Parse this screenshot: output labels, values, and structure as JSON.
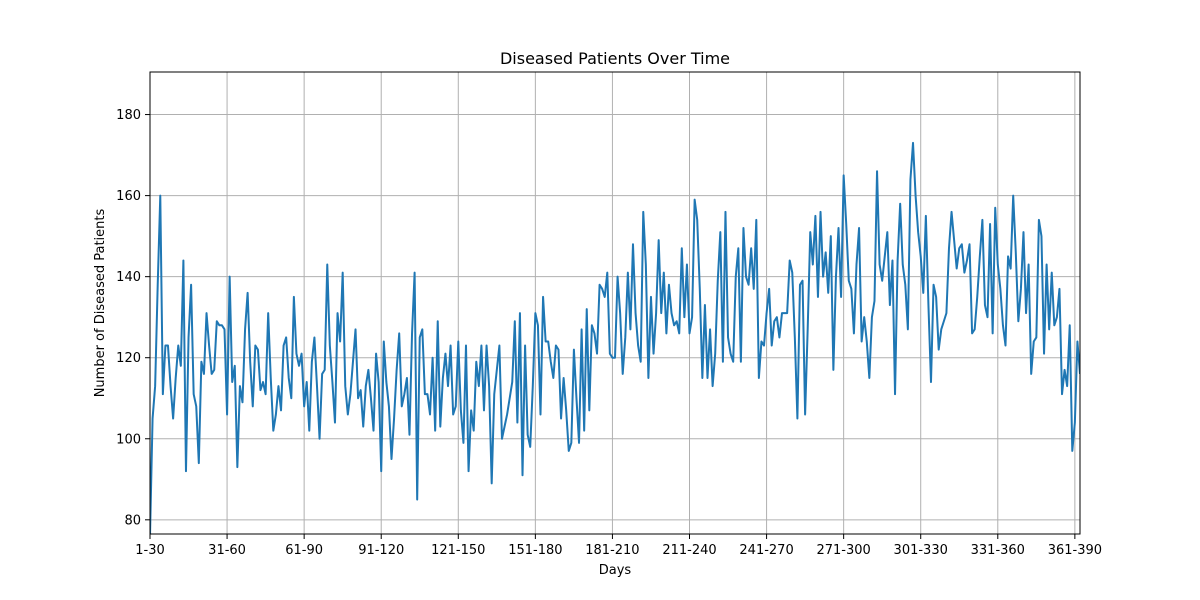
{
  "chart_data": {
    "type": "line",
    "title": "Diseased Patients Over Time",
    "xlabel": "Days",
    "ylabel": "Number of Diseased Patients",
    "ylim": [
      76.5,
      190.5
    ],
    "yticks": [
      80,
      100,
      120,
      140,
      160,
      180
    ],
    "xticks": [
      "1-30",
      "31-60",
      "61-90",
      "91-120",
      "121-150",
      "151-180",
      "181-210",
      "211-240",
      "241-270",
      "271-300",
      "301-330",
      "331-360",
      "361-390"
    ],
    "grid": true,
    "legend": "none",
    "line_color": "#1f77b4",
    "series": [
      {
        "values": [
          76,
          105,
          113,
          138,
          160,
          111,
          123,
          123,
          113,
          105,
          115,
          123,
          118,
          144,
          92,
          125,
          138,
          111,
          108,
          94,
          119,
          116,
          131,
          123,
          116,
          117,
          129,
          128,
          128,
          127,
          106,
          140,
          114,
          118,
          93,
          113,
          109,
          127,
          136,
          119,
          108,
          123,
          122,
          112,
          114,
          111,
          131,
          115,
          102,
          106,
          113,
          107,
          123,
          125,
          115,
          110,
          135,
          121,
          118,
          121,
          108,
          114,
          102,
          119,
          125,
          113,
          100,
          116,
          117,
          143,
          123,
          114,
          104,
          131,
          124,
          141,
          113,
          106,
          111,
          119,
          127,
          110,
          112,
          103,
          113,
          117,
          110,
          102,
          121,
          114,
          92,
          124,
          114,
          108,
          95,
          105,
          117,
          126,
          108,
          111,
          115,
          101,
          126,
          141,
          85,
          125,
          127,
          111,
          111,
          106,
          120,
          102,
          129,
          103,
          115,
          121,
          113,
          123,
          106,
          108,
          124,
          107,
          99,
          123,
          92,
          107,
          102,
          119,
          113,
          123,
          107,
          123,
          113,
          89,
          111,
          117,
          123,
          100,
          103,
          106,
          110,
          114,
          129,
          104,
          131,
          91,
          123,
          101,
          98,
          113,
          131,
          128,
          106,
          135,
          124,
          124,
          119,
          115,
          123,
          122,
          105,
          115,
          107,
          97,
          99,
          122,
          110,
          99,
          127,
          102,
          132,
          107,
          128,
          126,
          121,
          138,
          137,
          135,
          141,
          121,
          120,
          120,
          140,
          131,
          116,
          125,
          141,
          127,
          148,
          131,
          123,
          119,
          156,
          143,
          115,
          135,
          121,
          131,
          149,
          131,
          141,
          126,
          138,
          131,
          128,
          129,
          126,
          147,
          130,
          143,
          126,
          130,
          159,
          154,
          137,
          115,
          133,
          115,
          127,
          113,
          121,
          139,
          151,
          119,
          156,
          125,
          121,
          119,
          140,
          147,
          119,
          152,
          140,
          138,
          147,
          137,
          154,
          115,
          124,
          123,
          131,
          137,
          123,
          129,
          130,
          125,
          131,
          131,
          131,
          144,
          141,
          125,
          105,
          138,
          139,
          106,
          127,
          151,
          143,
          155,
          135,
          156,
          140,
          146,
          136,
          150,
          117,
          140,
          152,
          135,
          165,
          153,
          139,
          137,
          126,
          143,
          152,
          124,
          130,
          124,
          115,
          130,
          134,
          166,
          143,
          139,
          145,
          151,
          133,
          144,
          111,
          144,
          158,
          143,
          138,
          127,
          164,
          173,
          160,
          151,
          145,
          136,
          155,
          133,
          114,
          138,
          135,
          122,
          127,
          129,
          131,
          147,
          156,
          149,
          142,
          147,
          148,
          141,
          144,
          148,
          126,
          127,
          135,
          145,
          154,
          133,
          130,
          153,
          126,
          157,
          143,
          137,
          128,
          123,
          145,
          142,
          160,
          146,
          129,
          137,
          151,
          131,
          143,
          116,
          124,
          125,
          154,
          150,
          121,
          143,
          127,
          141,
          128,
          130,
          137,
          111,
          117,
          113,
          128,
          97,
          104,
          124,
          116
        ]
      }
    ]
  }
}
